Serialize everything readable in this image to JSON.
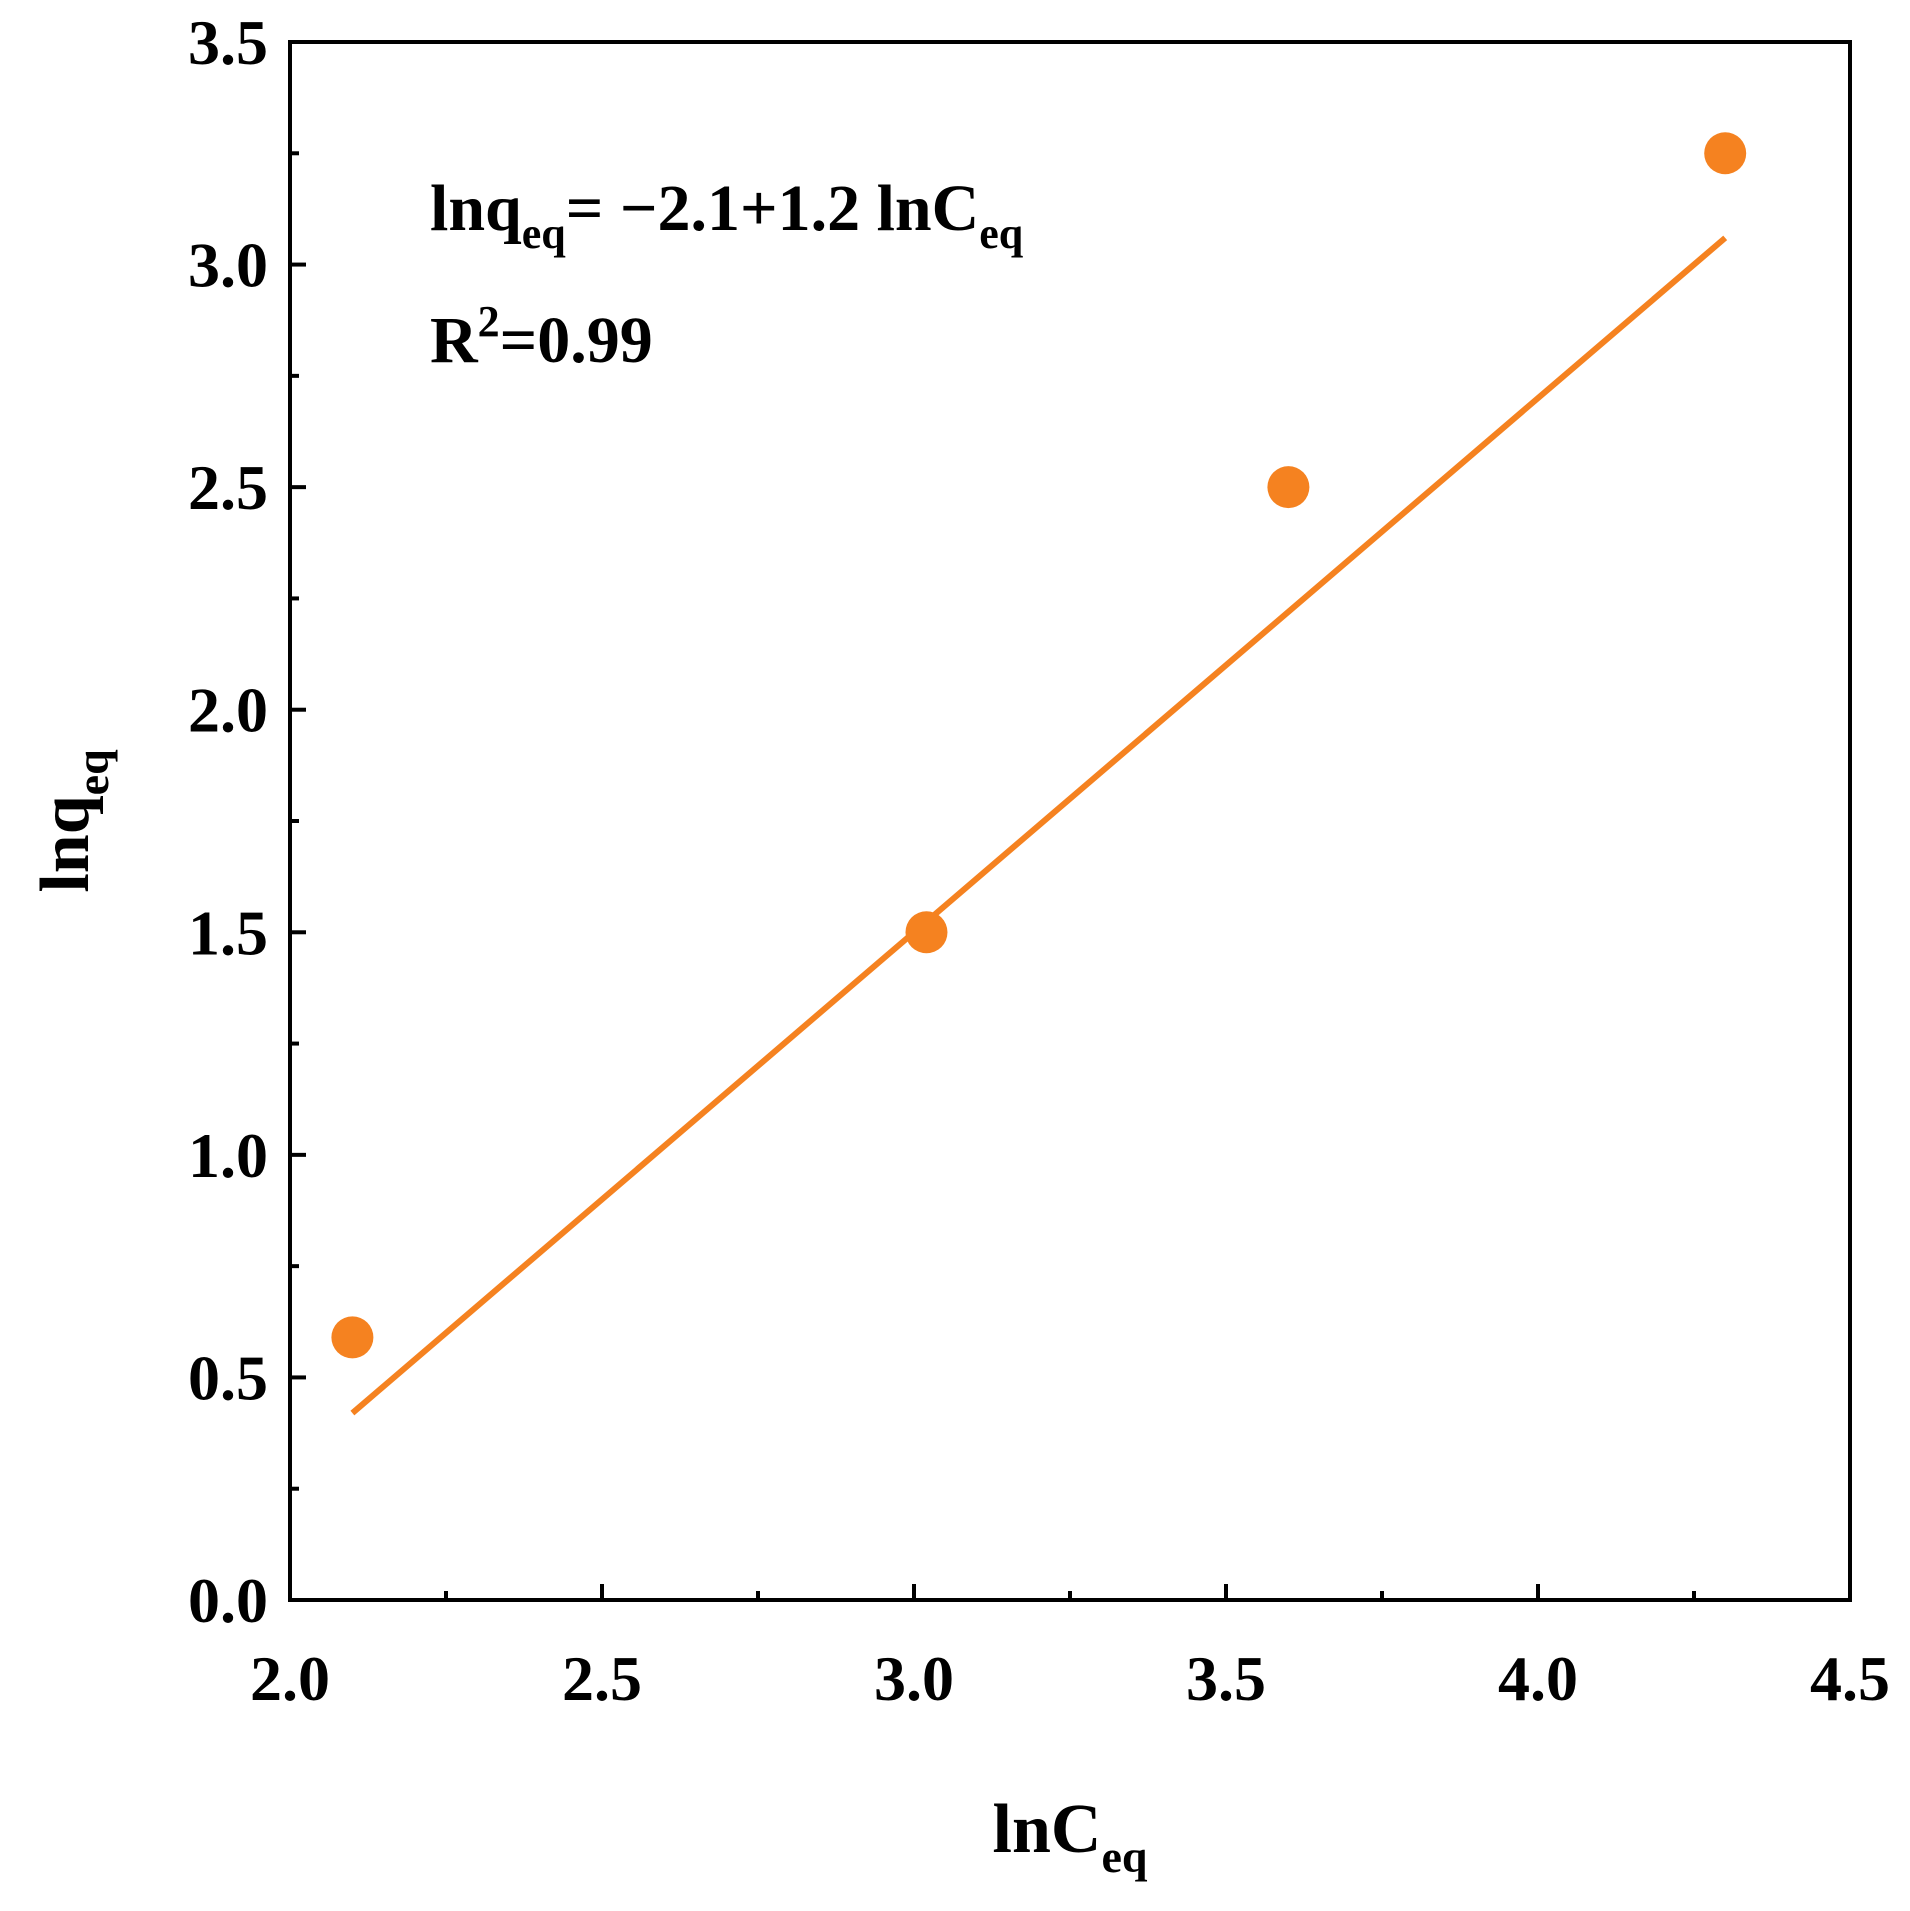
{
  "chart_data": {
    "type": "scatter",
    "xlabel": {
      "base": "lnC",
      "sub": "eq"
    },
    "ylabel": {
      "base": "lnq",
      "sub": "eq"
    },
    "xlim": [
      2.0,
      4.5
    ],
    "ylim": [
      0.0,
      3.5
    ],
    "x_ticks": [
      "2.0",
      "2.5",
      "3.0",
      "3.5",
      "4.0",
      "4.5"
    ],
    "y_ticks": [
      "0.0",
      "0.5",
      "1.0",
      "1.5",
      "2.0",
      "2.5",
      "3.0",
      "3.5"
    ],
    "series": [
      {
        "points": [
          {
            "x": 2.1,
            "y": 0.59
          },
          {
            "x": 3.02,
            "y": 1.5
          },
          {
            "x": 3.6,
            "y": 2.5
          },
          {
            "x": 4.3,
            "y": 3.25
          }
        ]
      }
    ],
    "fit_line": {
      "x_start": 2.1,
      "x_end": 4.3,
      "intercept": -2.1,
      "slope": 1.2
    },
    "annotations": {
      "equation": {
        "lhs_base": "lnq",
        "lhs_sub": "eq",
        "middle": "= −2.1+1.2 lnC",
        "rhs_sub": "eq"
      },
      "r_squared": {
        "base": "R",
        "sup": "2",
        "value": "=0.99"
      }
    },
    "grid": false,
    "legend": false,
    "colors": {
      "series": "#F58220",
      "axes": "#000000"
    }
  }
}
